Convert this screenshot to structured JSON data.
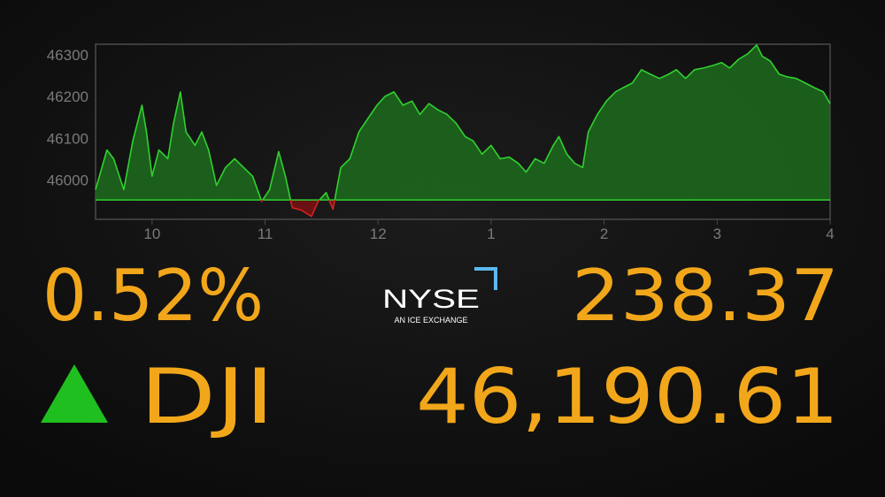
{
  "chart_data": {
    "type": "area",
    "x": [
      9.5,
      9.6,
      9.66,
      9.75,
      9.83,
      9.91,
      9.95,
      10.0,
      10.06,
      10.14,
      10.19,
      10.25,
      10.3,
      10.38,
      10.44,
      10.5,
      10.57,
      10.65,
      10.73,
      10.81,
      10.89,
      10.97,
      11.04,
      11.12,
      11.18,
      11.24,
      11.32,
      11.41,
      11.47,
      11.54,
      11.6,
      11.67,
      11.75,
      11.83,
      11.91,
      11.99,
      12.06,
      12.14,
      12.22,
      12.3,
      12.37,
      12.45,
      12.53,
      12.61,
      12.69,
      12.77,
      12.84,
      12.92,
      13.0,
      13.08,
      13.16,
      13.24,
      13.31,
      13.39,
      13.47,
      13.55,
      13.6,
      13.67,
      13.74,
      13.81,
      13.86,
      13.94,
      14.02,
      14.1,
      14.17,
      14.25,
      14.33,
      14.41,
      14.49,
      14.57,
      14.64,
      14.72,
      14.8,
      14.88,
      14.96,
      15.04,
      15.11,
      15.19,
      15.27,
      15.35,
      15.4,
      15.47,
      15.55,
      15.62,
      15.7,
      15.78,
      15.86,
      15.94,
      16.0
    ],
    "values": [
      45977,
      46072,
      46051,
      45977,
      46094,
      46179,
      46115,
      46009,
      46072,
      46051,
      46136,
      46211,
      46115,
      46083,
      46115,
      46072,
      45987,
      46030,
      46051,
      46030,
      46009,
      45949,
      45977,
      46068,
      46009,
      45934,
      45928,
      45913,
      45949,
      45970,
      45930,
      46030,
      46051,
      46115,
      46147,
      46179,
      46200,
      46211,
      46179,
      46189,
      46157,
      46183,
      46168,
      46157,
      46136,
      46104,
      46094,
      46062,
      46083,
      46051,
      46055,
      46040,
      46019,
      46051,
      46040,
      46083,
      46104,
      46062,
      46040,
      46030,
      46115,
      46157,
      46189,
      46211,
      46221,
      46232,
      46264,
      46253,
      46243,
      46253,
      46264,
      46243,
      46264,
      46268,
      46274,
      46281,
      46268,
      46289,
      46302,
      46323,
      46296,
      46285,
      46253,
      46247,
      46243,
      46232,
      46221,
      46211,
      46183
    ],
    "baseline": 45952.24,
    "up_color": "#2fd12f",
    "up_fill": "#1d6b1d",
    "down_color": "#d42020",
    "down_fill": "#7a1010",
    "xlim": [
      9.5,
      16
    ],
    "xticks": [
      10,
      11,
      {
        "value": 12,
        "label": "12"
      },
      {
        "value": 13,
        "label": "1"
      },
      {
        "value": 14,
        "label": "2"
      },
      {
        "value": 15,
        "label": "3"
      },
      {
        "value": 16,
        "label": "4"
      }
    ],
    "ylim": [
      45906,
      46325
    ],
    "yticks": [
      46000,
      46100,
      46200,
      46300
    ]
  },
  "ticker": {
    "change_percent": "0.52%",
    "change_points": "238.37",
    "symbol": "DJI",
    "price": "46,190.61",
    "logo": {
      "name": "NYSE",
      "tagline": "AN ICE EXCHANGE"
    }
  }
}
